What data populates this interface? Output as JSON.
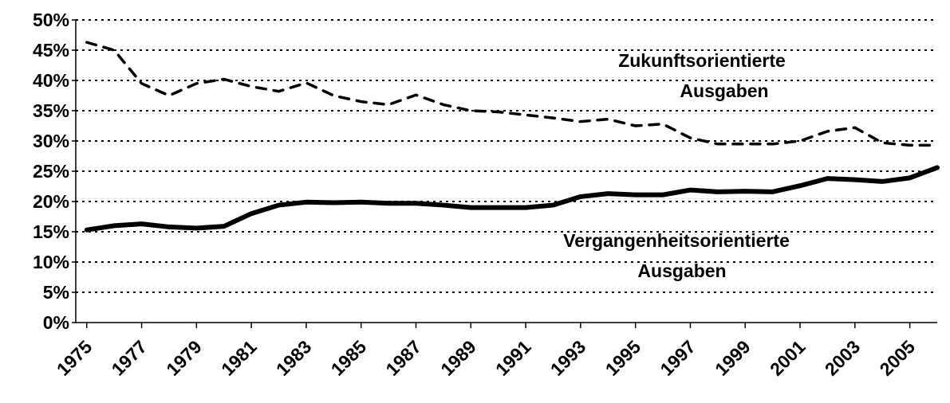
{
  "chart_data": {
    "type": "line",
    "x": [
      1975,
      1976,
      1977,
      1978,
      1979,
      1980,
      1981,
      1982,
      1983,
      1984,
      1985,
      1986,
      1987,
      1988,
      1989,
      1990,
      1991,
      1992,
      1993,
      1994,
      1995,
      1996,
      1997,
      1998,
      1999,
      2000,
      2001,
      2002,
      2003,
      2004,
      2005,
      2006
    ],
    "xlim": [
      1974.6,
      2006
    ],
    "xticks": [
      1975,
      1977,
      1979,
      1981,
      1983,
      1985,
      1987,
      1989,
      1991,
      1993,
      1995,
      1997,
      1999,
      2001,
      2003,
      2005
    ],
    "ylim": [
      0,
      50
    ],
    "yticks": [
      {
        "value": 0,
        "label": "0%"
      },
      {
        "value": 5,
        "label": "5%"
      },
      {
        "value": 10,
        "label": "10%"
      },
      {
        "value": 15,
        "label": "15%"
      },
      {
        "value": 20,
        "label": "20%"
      },
      {
        "value": 25,
        "label": "25%"
      },
      {
        "value": 30,
        "label": "30%"
      },
      {
        "value": 35,
        "label": "35%"
      },
      {
        "value": 40,
        "label": "40%"
      },
      {
        "value": 45,
        "label": "45%"
      },
      {
        "value": 50,
        "label": "50%"
      }
    ],
    "grid": true,
    "series": [
      {
        "color": "#000000",
        "style": "dashed",
        "values": [
          46.3,
          45.0,
          39.5,
          37.5,
          39.5,
          40.2,
          39.0,
          38.2,
          39.6,
          37.5,
          36.5,
          36.0,
          37.6,
          36.0,
          35.0,
          34.8,
          34.3,
          33.8,
          33.2,
          33.6,
          32.5,
          32.8,
          30.5,
          29.5,
          29.5,
          29.5,
          30.0,
          31.6,
          32.2,
          29.7,
          29.3,
          29.3
        ]
      },
      {
        "color": "#000000",
        "style": "solid",
        "values": [
          15.3,
          16.0,
          16.3,
          15.8,
          15.6,
          15.9,
          18.0,
          19.4,
          19.9,
          19.8,
          19.9,
          19.7,
          19.7,
          19.4,
          19.0,
          19.0,
          19.0,
          19.4,
          20.8,
          21.3,
          21.1,
          21.1,
          21.9,
          21.6,
          21.7,
          21.6,
          22.6,
          23.8,
          23.6,
          23.3,
          23.9,
          25.6
        ]
      }
    ],
    "annotations": [
      {
        "lines": [
          "Zukunftsorientierte",
          "Ausgaben"
        ]
      },
      {
        "lines": [
          "Vergangenheitsorientierte",
          "Ausgaben"
        ]
      }
    ]
  }
}
